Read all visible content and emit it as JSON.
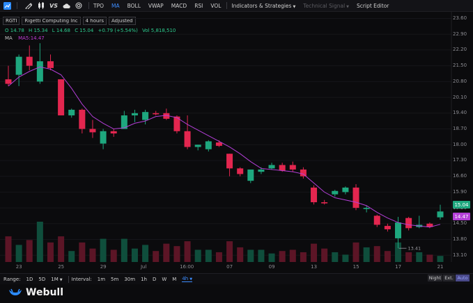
{
  "toolbar": {
    "items": [
      "TPO",
      "MA",
      "BOLL",
      "VWAP",
      "MACD",
      "RSI",
      "VOL",
      "Indicators & Strategies",
      "Technical Signal",
      "Script Editor"
    ],
    "active_item": "MA",
    "disabled_item": "Technical Signal",
    "icons": [
      "chart-type-icon",
      "draw-icon",
      "candlestick-icon",
      "vs-compare-icon",
      "cloud-icon",
      "target-icon"
    ],
    "vs_label": "VS"
  },
  "info": {
    "symbol": "RGTI",
    "company": "Rigetti Computing Inc",
    "timeframe": "4 hours",
    "adjustment": "Adjusted"
  },
  "ohlc": {
    "open": "O 14.78",
    "high": "H 15.34",
    "low": "L 14.68",
    "close": "C 15.04",
    "change": "+0.79 (+5.54%)",
    "volume": "Vol 5,818,510"
  },
  "ma": {
    "label": "MA",
    "value": "MA5:14.47"
  },
  "chart_data": {
    "type": "candlestick",
    "ylim": [
      12.8,
      23.8
    ],
    "y_ticks": [
      "23.60",
      "22.90",
      "22.20",
      "21.50",
      "20.80",
      "20.10",
      "19.40",
      "18.70",
      "18.00",
      "17.30",
      "16.60",
      "15.90",
      "15.20",
      "14.50",
      "13.80",
      "13.10"
    ],
    "x_ticks": [
      "23",
      "25",
      "29",
      "Jul",
      "16:00",
      "07",
      "09",
      "13",
      "15",
      "17",
      "21"
    ],
    "candles": [
      [
        20.9,
        21.5,
        20.6,
        20.7
      ],
      [
        21.1,
        22.0,
        20.6,
        21.9
      ],
      [
        21.9,
        22.4,
        21.3,
        21.5
      ],
      [
        20.8,
        22.5,
        20.7,
        21.7
      ],
      [
        21.7,
        22.0,
        21.3,
        21.4
      ],
      [
        20.9,
        20.9,
        19.3,
        19.3
      ],
      [
        19.3,
        19.6,
        19.2,
        19.55
      ],
      [
        19.55,
        19.6,
        18.5,
        18.7
      ],
      [
        18.7,
        19.1,
        18.3,
        18.55
      ],
      [
        18.05,
        18.7,
        17.8,
        18.6
      ],
      [
        18.6,
        18.7,
        18.35,
        18.5
      ],
      [
        18.7,
        19.5,
        18.7,
        19.3
      ],
      [
        19.3,
        19.55,
        19.0,
        19.4
      ],
      [
        19.1,
        19.55,
        18.9,
        19.45
      ],
      [
        19.4,
        19.5,
        19.3,
        19.35
      ],
      [
        19.4,
        19.6,
        19.1,
        19.15
      ],
      [
        19.25,
        19.3,
        18.5,
        18.6
      ],
      [
        18.6,
        19.3,
        17.8,
        17.9
      ],
      [
        17.9,
        18.0,
        17.75,
        18.0
      ],
      [
        17.8,
        18.2,
        17.7,
        18.15
      ],
      [
        18.1,
        18.2,
        17.9,
        17.95
      ],
      [
        17.6,
        17.6,
        16.6,
        16.95
      ],
      [
        16.95,
        17.0,
        16.6,
        16.7
      ],
      [
        16.4,
        16.8,
        16.3,
        16.9
      ],
      [
        16.8,
        17.0,
        16.7,
        16.9
      ],
      [
        16.95,
        17.2,
        16.9,
        17.1
      ],
      [
        17.1,
        17.2,
        16.8,
        16.85
      ],
      [
        17.1,
        17.25,
        16.8,
        16.9
      ],
      [
        16.9,
        17.0,
        16.5,
        16.6
      ],
      [
        16.1,
        16.2,
        15.35,
        15.45
      ],
      [
        15.45,
        15.55,
        15.35,
        15.4
      ],
      [
        15.8,
        16.0,
        15.7,
        15.95
      ],
      [
        15.9,
        16.15,
        15.8,
        16.1
      ],
      [
        16.1,
        16.25,
        15.1,
        15.2
      ],
      [
        15.15,
        15.3,
        15.0,
        15.2
      ],
      [
        14.85,
        14.9,
        14.35,
        14.45
      ],
      [
        14.4,
        14.5,
        14.15,
        14.25
      ],
      [
        13.85,
        14.8,
        13.41,
        14.55
      ],
      [
        14.75,
        14.8,
        14.2,
        14.3
      ],
      [
        14.35,
        14.85,
        14.3,
        14.45
      ],
      [
        14.5,
        14.55,
        14.3,
        14.35
      ],
      [
        14.78,
        15.34,
        14.68,
        15.04
      ]
    ],
    "volume": [
      2.1,
      1.4,
      1.8,
      3.3,
      1.6,
      2.1,
      0.9,
      1.6,
      1.1,
      1.9,
      1.0,
      1.9,
      1.1,
      1.4,
      0.9,
      1.5,
      1.3,
      1.7,
      1.0,
      1.0,
      0.8,
      1.7,
      1.2,
      1.0,
      1.0,
      0.7,
      0.9,
      1.0,
      0.8,
      1.5,
      1.1,
      0.8,
      0.6,
      1.6,
      1.2,
      1.3,
      0.9,
      1.6,
      0.8,
      0.8,
      0.6,
      0.5
    ],
    "ma5": [
      20.6,
      21.0,
      21.25,
      21.45,
      21.35,
      21.1,
      20.5,
      19.8,
      19.25,
      18.95,
      18.7,
      18.75,
      18.95,
      19.05,
      19.25,
      19.3,
      19.2,
      18.9,
      18.65,
      18.4,
      18.15,
      17.9,
      17.6,
      17.25,
      16.95,
      16.9,
      16.85,
      16.8,
      16.7,
      16.3,
      15.9,
      15.65,
      15.55,
      15.45,
      15.3,
      15.0,
      14.75,
      14.55,
      14.45,
      14.4,
      14.35,
      14.47
    ],
    "last_price": "15.04",
    "ma_price": "14.47",
    "low_marker": "13.41",
    "colors": {
      "up": "#1ea77e",
      "down": "#e3264f",
      "ma": "#b43fd8",
      "up_vol": "#0f4e3c",
      "down_vol": "#5c1526"
    }
  },
  "bottom": {
    "range_label": "Range:",
    "ranges": [
      "1D",
      "5D",
      "1M"
    ],
    "interval_label": "Interval:",
    "intervals": [
      "1m",
      "5m",
      "30m",
      "1h",
      "D",
      "W",
      "M",
      "4h"
    ],
    "active_interval": "4h",
    "sessions": [
      "Night",
      "Ext.",
      "Auto"
    ],
    "active_session": "Auto"
  },
  "brand": {
    "name": "Webull"
  }
}
